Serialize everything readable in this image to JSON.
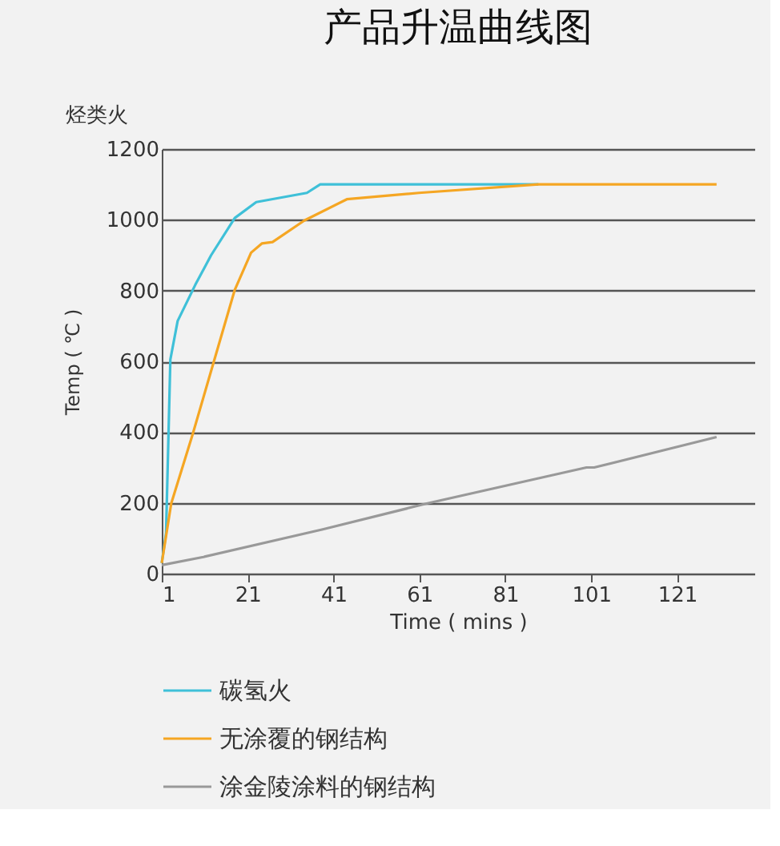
{
  "chart_data": {
    "type": "line",
    "title": "产品升温曲线图",
    "xlabel": "Time ( mins )",
    "ylabel": "Temp ( ℃ )",
    "annotations": [
      "烃类火"
    ],
    "xlim": [
      1,
      139
    ],
    "xticks": [
      1,
      21,
      41,
      61,
      81,
      101,
      121
    ],
    "ylim": [
      0,
      1200
    ],
    "yticks": [
      0,
      200,
      400,
      600,
      800,
      1000,
      1200
    ],
    "grid": "y",
    "legend": "bottom",
    "line_style": "solid",
    "marker": "none",
    "series": [
      {
        "name": "碳氢火",
        "color": "#3fc0d8",
        "x": [
          1,
          2,
          3,
          4.7,
          8.8,
          12.5,
          18,
          23,
          34.8,
          37.9,
          88.7
        ],
        "values": [
          30,
          115,
          605,
          714,
          816,
          900,
          1005,
          1050,
          1076,
          1100,
          1100
        ]
      },
      {
        "name": "无涂覆的钢结构",
        "color": "#f5a623",
        "x": [
          1,
          3.2,
          8.2,
          18,
          21.8,
          24.3,
          26.8,
          34.2,
          44.1,
          60.9,
          88.7,
          130.2
        ],
        "values": [
          30,
          198,
          394,
          802,
          907,
          933,
          937,
          998,
          1058,
          1076,
          1100,
          1100
        ]
      },
      {
        "name": "涂金陵涂料的钢结构",
        "color": "#999999",
        "x": [
          1,
          10.7,
          38.5,
          62.7,
          99.9,
          101.7,
          130.2
        ],
        "values": [
          24,
          47,
          125,
          198,
          300,
          300,
          386
        ]
      }
    ]
  }
}
